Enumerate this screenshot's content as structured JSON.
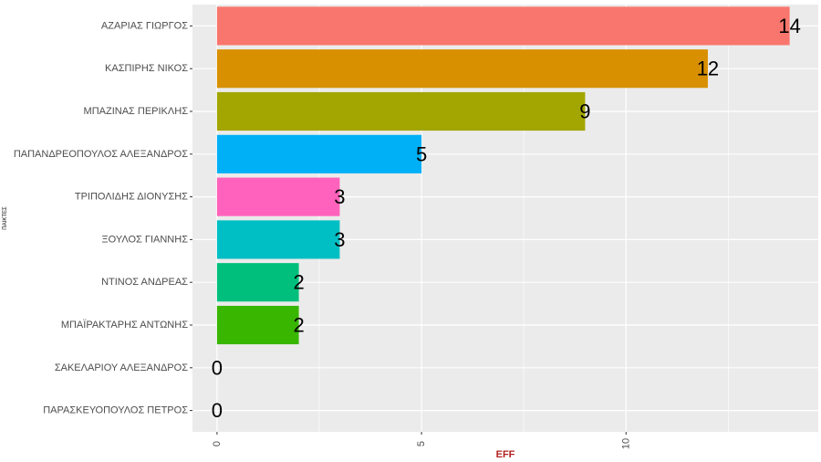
{
  "chart_data": {
    "type": "bar",
    "orientation": "horizontal",
    "categories": [
      "ΑΖΑΡΙΑΣ ΓΙΩΡΓΟΣ",
      "ΚΑΣΠΙΡΗΣ ΝΙΚΟΣ",
      "ΜΠΑΖΙΝΑΣ ΠΕΡΙΚΛΗΣ",
      "ΠΑΠΑΝΔΡΕΟΠΟΥΛΟΣ ΑΛΕΞΑΝΔΡΟΣ",
      "ΤΡΙΠΟΛΙΔΗΣ ΔΙΟΝΥΣΗΣ",
      "ΞΟΥΛΟΣ ΓΙΑΝΝΗΣ",
      "ΝΤΙΝΟΣ ΑΝΔΡΕΑΣ",
      "ΜΠΑΪΡΑΚΤΑΡΗΣ ΑΝΤΩΝΗΣ",
      "ΣΑΚΕΛΑΡΙΟΥ ΑΛΕΞΑΝΔΡΟΣ",
      "ΠΑΡΑΣΚΕΥΟΠΟΥΛΟΣ ΠΕΤΡΟΣ"
    ],
    "values": [
      14,
      12,
      9,
      5,
      3,
      3,
      2,
      2,
      0,
      0
    ],
    "data_labels": [
      "14",
      "12",
      "9",
      "5",
      "3",
      "3",
      "2",
      "2",
      "0",
      "0"
    ],
    "bar_colors": [
      "#F8766D",
      "#D89000",
      "#A3A500",
      "#00B0F6",
      "#FF62BC",
      "#00BFC4",
      "#00BF7D",
      "#39B600",
      "#9590FF",
      "#E76BF3"
    ],
    "xlabel": "EFF",
    "xlabel_color": "#B22222",
    "ylabel": "ΠΑΙΚΤΕΣ",
    "xlim": [
      -0.6,
      14.7
    ],
    "x_ticks": [
      0,
      5,
      10
    ],
    "x_tick_labels": [
      "0",
      "5",
      "10"
    ],
    "grid": true,
    "panel_background": "#EBEBEB",
    "legend": "none"
  }
}
